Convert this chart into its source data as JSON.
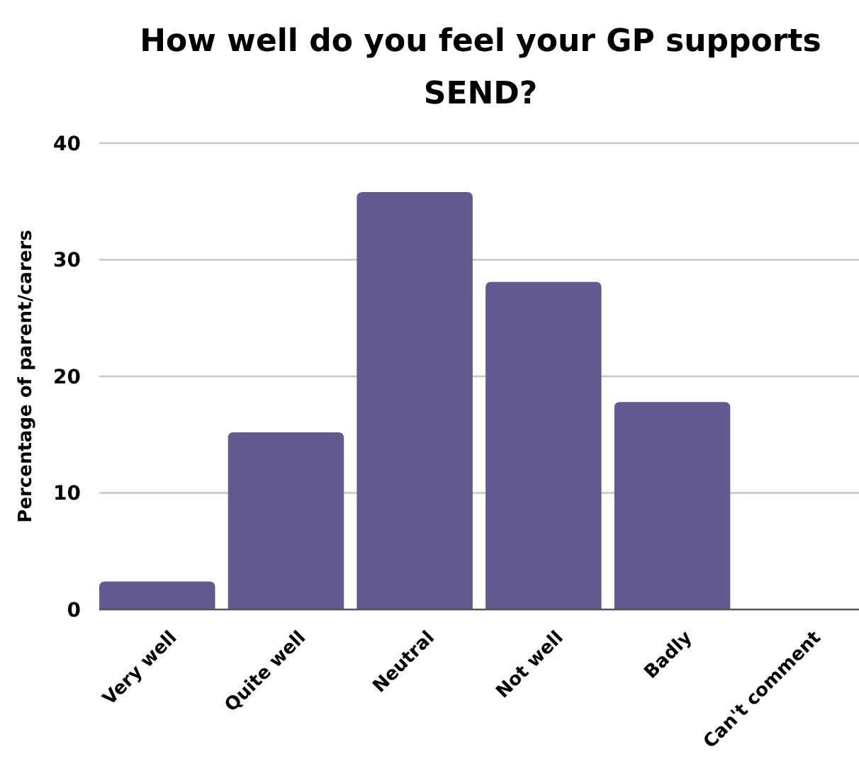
{
  "chart_data": {
    "type": "bar",
    "title": "How well do you feel your GP supports SEND?",
    "ylabel": "Percentage of parent/carers",
    "categories": [
      "Very well",
      "Quite well",
      "Neutral",
      "Not well",
      "Badly",
      "Can't comment"
    ],
    "values": [
      2.4,
      15.2,
      35.8,
      28.1,
      17.8,
      0
    ],
    "color": "#635a8f",
    "ylim": [
      0,
      40
    ],
    "yticks": [
      0,
      10,
      20,
      30,
      40
    ],
    "grid": "y"
  }
}
